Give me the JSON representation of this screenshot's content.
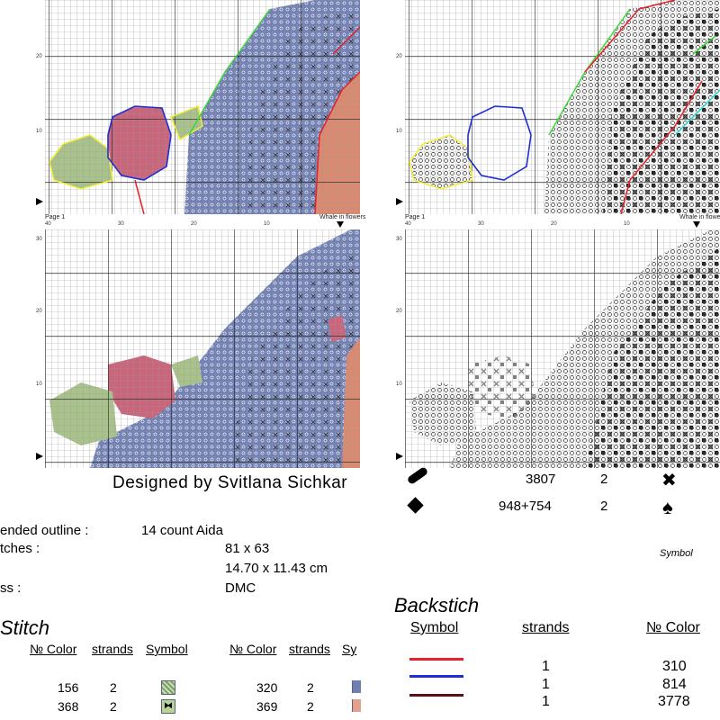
{
  "designer": "Designed by Svitlana Sichkar",
  "page_label": "Page 1",
  "page_label_right": "Whale in flowers",
  "axis_x": [
    "40",
    "30",
    "20",
    "10"
  ],
  "axis_y": [
    "20",
    "10"
  ],
  "axis_y_lower": [
    "30",
    "20",
    "10"
  ],
  "info": {
    "outline_label": "ended outline :",
    "canvas": "14 count Aida",
    "stitches_label": "tches :",
    "stitches_value": "81 x 63",
    "size_value": "14.70 x 11.43 cm",
    "thread_label": "ss :",
    "thread_value": "DMC"
  },
  "cross_stitch_title": "Stitch",
  "cross_table": {
    "headers": [
      "№ Color",
      "strands",
      "Symbol"
    ],
    "headers2": [
      "№ Color",
      "strands",
      "Sy"
    ],
    "left_rows": [
      {
        "color": "156",
        "strands": "2"
      },
      {
        "color": "368",
        "strands": "2"
      }
    ],
    "right_rows": [
      {
        "color": "320",
        "strands": "2"
      },
      {
        "color": "369",
        "strands": "2"
      }
    ]
  },
  "legend_top": [
    {
      "icon": "pill-icon",
      "color": "3807",
      "strands": "2",
      "symbol_icon": "x-mark-icon",
      "symbol_char": "✖"
    },
    {
      "icon": "diamond-icon",
      "color": "948+754",
      "strands": "2",
      "symbol_icon": "spade-icon",
      "symbol_char": "♠"
    }
  ],
  "symbol_caption": "Symbol",
  "backstitch": {
    "title": "Backstich",
    "headers": [
      "Symbol",
      "strands",
      "№ Color"
    ],
    "rows": [
      {
        "line_color": "#e8202a",
        "strands": "1",
        "color": "310"
      },
      {
        "line_color": "#1c2fd6",
        "strands": "1",
        "color": "814"
      },
      {
        "line_color": "#5a1018",
        "strands": "1",
        "color": "3778"
      }
    ]
  },
  "colors": {
    "whale": "#6f7fb4",
    "rose": "#c9667c",
    "leaf": "#a9c28c",
    "coral": "#d98a70",
    "outline_red": "#e8202a",
    "outline_blue": "#1c2fd6",
    "outline_yellow": "#f2ee3a",
    "outline_green": "#3ed63a"
  }
}
